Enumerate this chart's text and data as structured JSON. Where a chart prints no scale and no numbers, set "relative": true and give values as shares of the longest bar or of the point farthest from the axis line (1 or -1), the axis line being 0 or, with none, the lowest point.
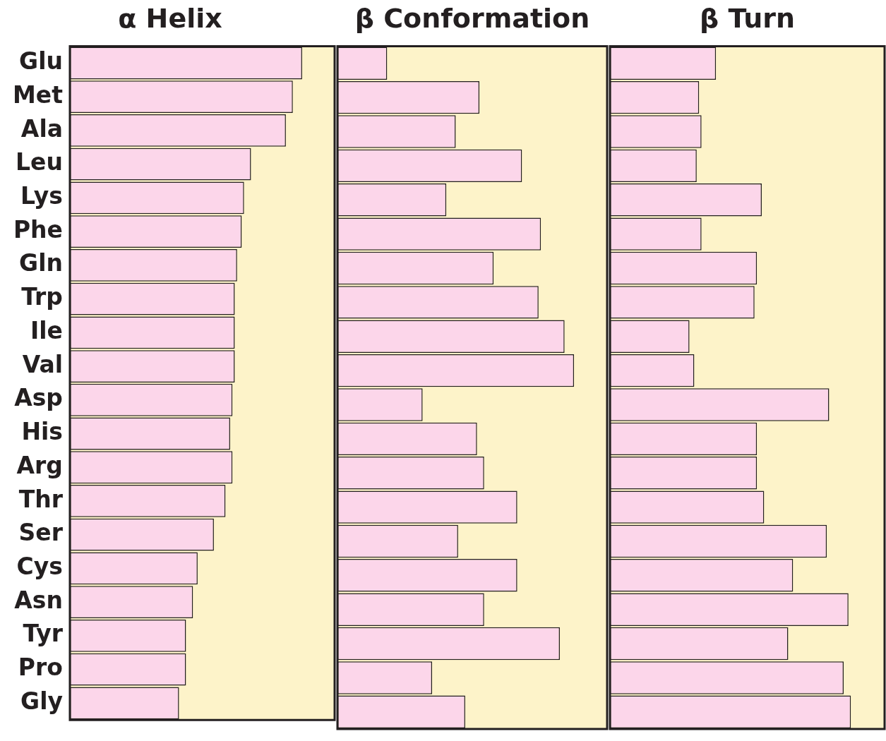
{
  "chart_data": [
    {
      "type": "bar",
      "orientation": "horizontal",
      "relative": true,
      "tick_labels": "y",
      "title": "α Helix",
      "color": "#fcd6ea",
      "categories": [
        "Glu",
        "Met",
        "Ala",
        "Leu",
        "Lys",
        "Phe",
        "Gln",
        "Trp",
        "Ile",
        "Val",
        "Asp",
        "His",
        "Arg",
        "Thr",
        "Ser",
        "Cys",
        "Asn",
        "Tyr",
        "Pro",
        "Gly"
      ],
      "values": [
        1,
        0.96,
        0.93,
        0.78,
        0.75,
        0.74,
        0.72,
        0.71,
        0.71,
        0.71,
        0.7,
        0.69,
        0.7,
        0.67,
        0.62,
        0.55,
        0.53,
        0.5,
        0.5,
        0.47
      ]
    },
    {
      "type": "bar",
      "orientation": "horizontal",
      "relative": true,
      "tick_labels": false,
      "title": "β Conformation",
      "color": "#fcd6ea",
      "categories": [
        null,
        null,
        null,
        null,
        null,
        null,
        null,
        null,
        null,
        null,
        null,
        null,
        null,
        null,
        null,
        null,
        null,
        null,
        null,
        null
      ],
      "values": [
        0.21,
        0.6,
        0.5,
        0.78,
        0.46,
        0.86,
        0.66,
        0.85,
        0.96,
        1,
        0.36,
        0.59,
        0.62,
        0.76,
        0.51,
        0.76,
        0.62,
        0.94,
        0.4,
        0.54
      ]
    },
    {
      "type": "bar",
      "orientation": "horizontal",
      "relative": true,
      "tick_labels": false,
      "title": "β Turn",
      "color": "#fcd6ea",
      "categories": [
        null,
        null,
        null,
        null,
        null,
        null,
        null,
        null,
        null,
        null,
        null,
        null,
        null,
        null,
        null,
        null,
        null,
        null,
        null,
        null
      ],
      "values": [
        0.44,
        0.37,
        0.38,
        0.36,
        0.63,
        0.38,
        0.61,
        0.6,
        0.33,
        0.35,
        0.91,
        0.61,
        0.61,
        0.64,
        0.9,
        0.76,
        0.99,
        0.74,
        0.97,
        1
      ]
    }
  ]
}
